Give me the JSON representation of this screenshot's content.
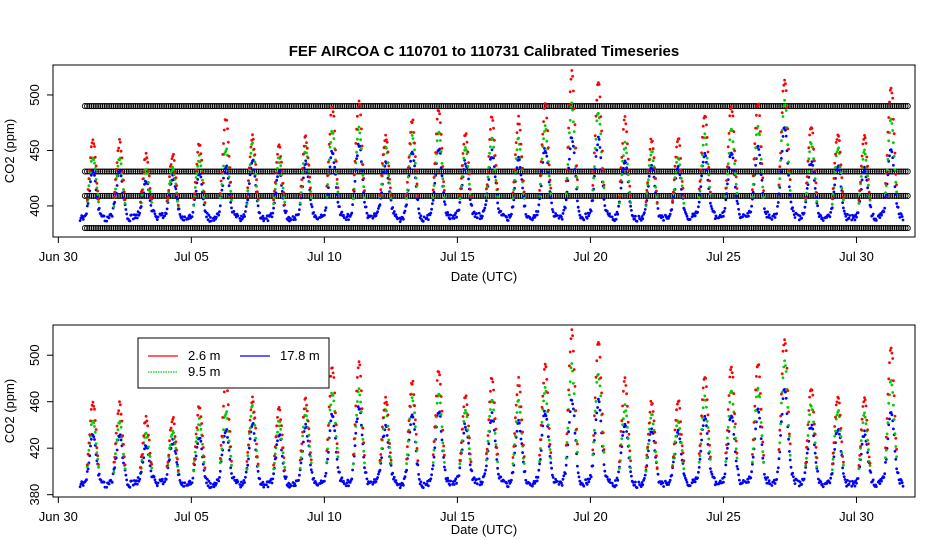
{
  "title": "FEF   AIRCOA  C    110701  to  110731   Calibrated Timeseries",
  "colors": {
    "s1": "#ff0000",
    "s2": "#00cc00",
    "s3": "#0000ff",
    "cal": "#000000"
  },
  "chart_data": [
    {
      "type": "scatter",
      "title": "FEF   AIRCOA  C    110701  to  110731   Calibrated Timeseries",
      "xlabel": "Date (UTC)",
      "ylabel": "CO2 (ppm)",
      "xlim_days": [
        29.8,
        62.2
      ],
      "ylim": [
        372,
        527
      ],
      "x_ticks": [
        {
          "day": 30,
          "label": "Jun 30"
        },
        {
          "day": 35,
          "label": "Jul 05"
        },
        {
          "day": 40,
          "label": "Jul 10"
        },
        {
          "day": 45,
          "label": "Jul 15"
        },
        {
          "day": 50,
          "label": "Jul 20"
        },
        {
          "day": 55,
          "label": "Jul 25"
        },
        {
          "day": 60,
          "label": "Jul 30"
        }
      ],
      "y_ticks": [
        400,
        450,
        500
      ],
      "calibration_levels": [
        380,
        409,
        431,
        490
      ],
      "series": [
        {
          "name": "2.6 m",
          "color": "#ff0000"
        },
        {
          "name": "9.5 m",
          "color": "#00cc00"
        },
        {
          "name": "17.8 m",
          "color": "#0000ff"
        }
      ]
    },
    {
      "type": "scatter",
      "xlabel": "Date (UTC)",
      "ylabel": "CO2 (ppm)",
      "xlim_days": [
        29.8,
        62.2
      ],
      "ylim": [
        378,
        526
      ],
      "x_ticks": [
        {
          "day": 30,
          "label": "Jun 30"
        },
        {
          "day": 35,
          "label": "Jul 05"
        },
        {
          "day": 40,
          "label": "Jul 10"
        },
        {
          "day": 45,
          "label": "Jul 15"
        },
        {
          "day": 50,
          "label": "Jul 20"
        },
        {
          "day": 55,
          "label": "Jul 25"
        },
        {
          "day": 60,
          "label": "Jul 30"
        }
      ],
      "y_ticks": [
        380,
        420,
        460,
        500
      ],
      "legend": [
        {
          "label": "2.6 m",
          "color": "#ff0000"
        },
        {
          "label": "9.5 m",
          "color": "#00cc00"
        },
        {
          "label": "17.8 m",
          "color": "#0000ff"
        }
      ]
    }
  ],
  "daily_peaks": [
    {
      "day": 31,
      "blue": 432,
      "green": 445,
      "red": 460
    },
    {
      "day": 32,
      "blue": 430,
      "green": 442,
      "red": 457
    },
    {
      "day": 33,
      "blue": 422,
      "green": 432,
      "red": 445
    },
    {
      "day": 34,
      "blue": 426,
      "green": 436,
      "red": 446
    },
    {
      "day": 35,
      "blue": 430,
      "green": 444,
      "red": 455
    },
    {
      "day": 36,
      "blue": 436,
      "green": 452,
      "red": 478
    },
    {
      "day": 37,
      "blue": 440,
      "green": 455,
      "red": 462
    },
    {
      "day": 38,
      "blue": 430,
      "green": 442,
      "red": 453
    },
    {
      "day": 39,
      "blue": 438,
      "green": 452,
      "red": 462
    },
    {
      "day": 40,
      "blue": 448,
      "green": 468,
      "red": 490
    },
    {
      "day": 41,
      "blue": 455,
      "green": 470,
      "red": 493
    },
    {
      "day": 42,
      "blue": 438,
      "green": 452,
      "red": 463
    },
    {
      "day": 43,
      "blue": 448,
      "green": 466,
      "red": 478
    },
    {
      "day": 44,
      "blue": 452,
      "green": 468,
      "red": 488
    },
    {
      "day": 45,
      "blue": 440,
      "green": 452,
      "red": 465
    },
    {
      "day": 46,
      "blue": 448,
      "green": 462,
      "red": 480
    },
    {
      "day": 47,
      "blue": 442,
      "green": 460,
      "red": 478
    },
    {
      "day": 48,
      "blue": 452,
      "green": 470,
      "red": 490
    },
    {
      "day": 49,
      "blue": 462,
      "green": 490,
      "red": 520
    },
    {
      "day": 50,
      "blue": 460,
      "green": 485,
      "red": 510
    },
    {
      "day": 51,
      "blue": 440,
      "green": 455,
      "red": 478
    },
    {
      "day": 52,
      "blue": 436,
      "green": 448,
      "red": 460
    },
    {
      "day": 53,
      "blue": 434,
      "green": 445,
      "red": 460
    },
    {
      "day": 54,
      "blue": 446,
      "green": 462,
      "red": 480
    },
    {
      "day": 55,
      "blue": 448,
      "green": 468,
      "red": 490
    },
    {
      "day": 56,
      "blue": 452,
      "green": 470,
      "red": 492
    },
    {
      "day": 57,
      "blue": 470,
      "green": 495,
      "red": 515
    },
    {
      "day": 58,
      "blue": 440,
      "green": 458,
      "red": 472
    },
    {
      "day": 59,
      "blue": 438,
      "green": 452,
      "red": 465
    },
    {
      "day": 60,
      "blue": 434,
      "green": 448,
      "red": 462
    },
    {
      "day": 61,
      "blue": 452,
      "green": 478,
      "red": 508
    }
  ]
}
